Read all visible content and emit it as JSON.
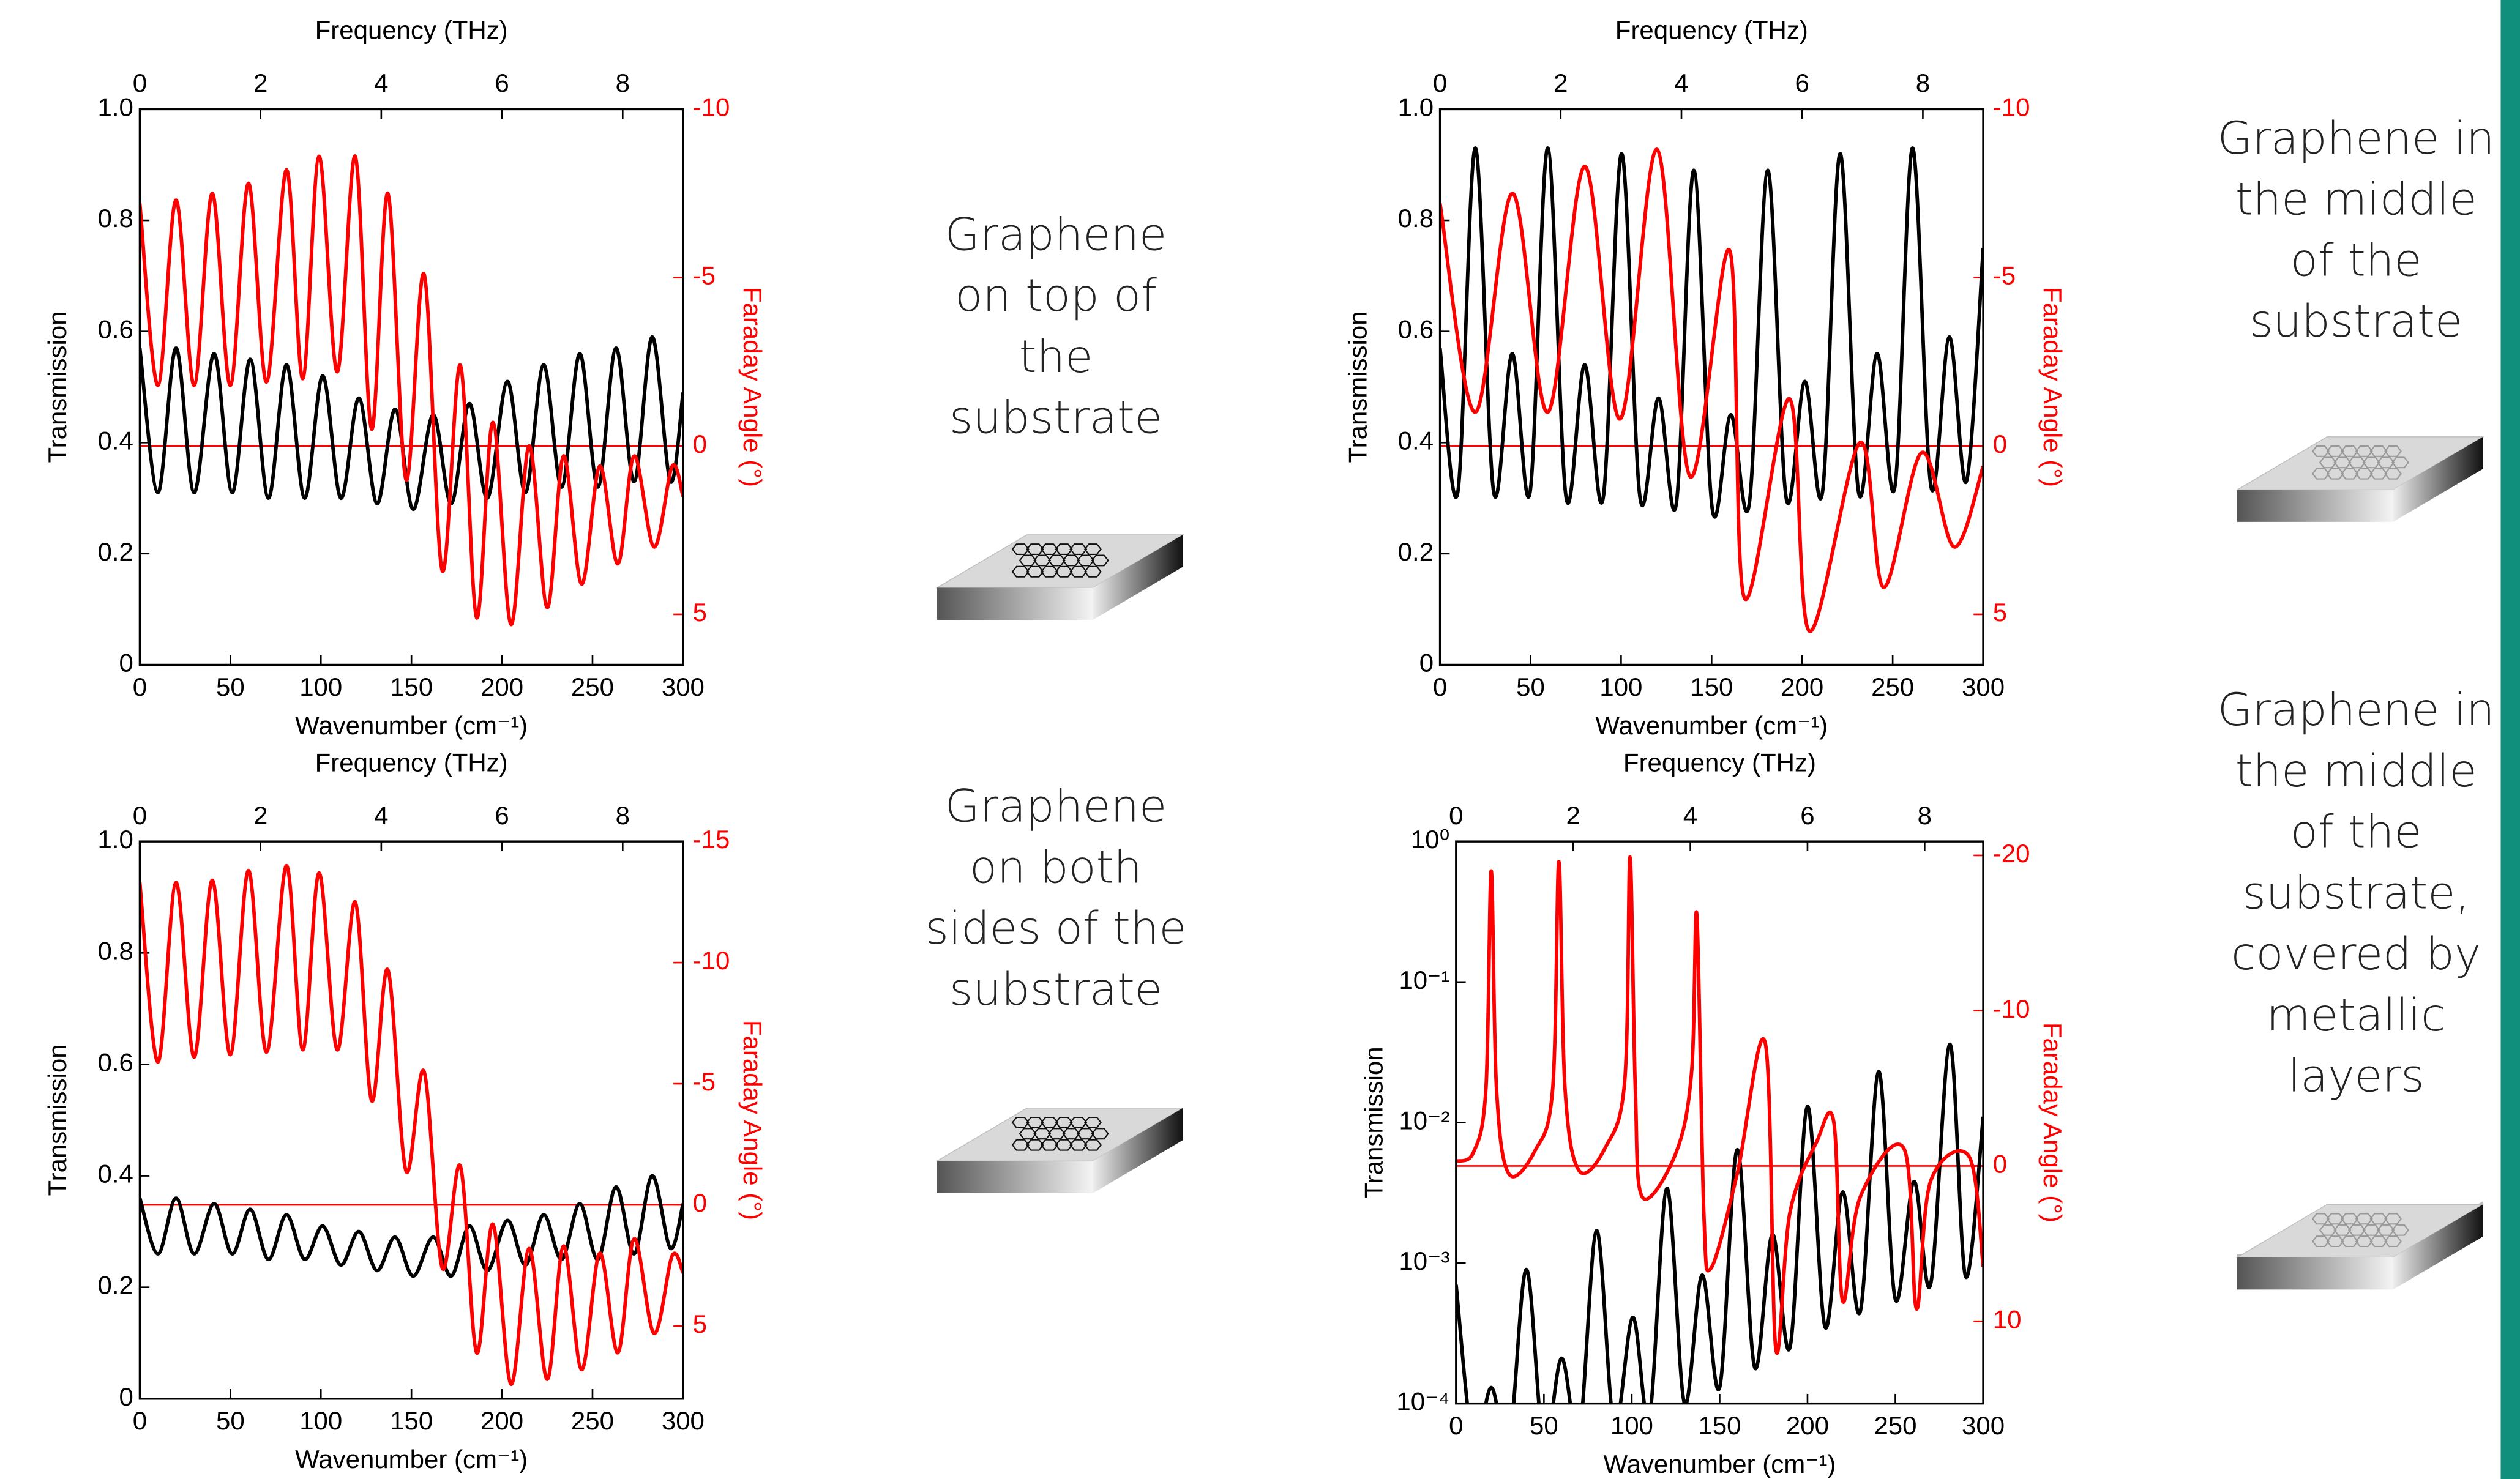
{
  "chart_data": [
    {
      "type": "line",
      "x2label": "Frequency (THz)",
      "xlabel": "Wavenumber (cm⁻¹)",
      "ylabel": "Transmission",
      "y2label": "Faraday Angle (°)",
      "annotation": [
        "Graphene",
        "on top of",
        "the",
        "substrate"
      ],
      "xlim": [
        0,
        300
      ],
      "xticks": [
        0,
        50,
        100,
        150,
        200,
        250,
        300
      ],
      "x2lim": [
        0,
        9
      ],
      "x2ticks": [
        0,
        2,
        4,
        6,
        8
      ],
      "ylim": [
        0,
        1
      ],
      "yticks": [
        0,
        0.2,
        0.4,
        0.6,
        0.8,
        {
          "value": 1,
          "label": "1.0"
        }
      ],
      "y2lim": [
        6.5,
        -10
      ],
      "y2ticks": [
        -10,
        -5,
        0,
        5
      ],
      "series": [
        {
          "color": "#000000",
          "x": [
            0,
            10,
            20,
            30,
            41,
            51,
            61,
            71,
            81,
            91,
            101,
            111,
            121,
            131,
            141,
            151,
            162,
            172,
            182,
            192,
            203,
            213,
            223,
            233,
            243,
            253,
            263,
            273,
            283,
            293,
            300
          ],
          "values": [
            0.57,
            0.31,
            0.57,
            0.31,
            0.56,
            0.31,
            0.55,
            0.3,
            0.54,
            0.3,
            0.52,
            0.3,
            0.48,
            0.29,
            0.46,
            0.28,
            0.45,
            0.29,
            0.47,
            0.3,
            0.51,
            0.31,
            0.54,
            0.32,
            0.56,
            0.32,
            0.57,
            0.33,
            0.59,
            0.33,
            0.49
          ]
        },
        {
          "color": "#ff0000",
          "axis": "y2",
          "x": [
            0,
            10,
            20,
            30,
            40,
            50,
            60,
            70,
            81,
            90,
            99,
            109,
            119,
            128,
            137,
            147,
            157,
            167,
            177,
            186,
            195,
            205,
            215,
            225,
            234,
            244,
            254,
            264,
            273,
            284,
            294,
            300
          ],
          "values": [
            -7.2,
            -1.8,
            -7.3,
            -1.8,
            -7.5,
            -1.8,
            -7.8,
            -1.9,
            -8.2,
            -2.0,
            -8.6,
            -2.2,
            -8.6,
            -0.5,
            -7.5,
            1.0,
            -5.1,
            3.7,
            -2.4,
            5.1,
            -0.7,
            5.3,
            0,
            4.8,
            0.3,
            4.1,
            0.6,
            3.5,
            0.3,
            3.0,
            0.6,
            1.5
          ]
        }
      ]
    },
    {
      "type": "line",
      "x2label": "Frequency (THz)",
      "xlabel": "Wavenumber (cm⁻¹)",
      "ylabel": "Transmission",
      "y2label": "Faraday Angle (°)",
      "annotation": [
        "Graphene in",
        "the middle",
        "of the",
        "substrate"
      ],
      "xlim": [
        0,
        300
      ],
      "xticks": [
        0,
        50,
        100,
        150,
        200,
        250,
        300
      ],
      "x2lim": [
        0,
        9
      ],
      "x2ticks": [
        0,
        2,
        4,
        6,
        8
      ],
      "ylim": [
        0,
        1
      ],
      "yticks": [
        0,
        0.2,
        0.4,
        0.6,
        0.8,
        {
          "value": 1,
          "label": "1.0"
        }
      ],
      "y2lim": [
        6.5,
        -10
      ],
      "y2ticks": [
        -10,
        -5,
        0,
        5
      ],
      "series": [
        {
          "color": "#000000",
          "x": [
            0,
            9.8,
            19.5,
            29.7,
            39.9,
            49.7,
            59.5,
            69.7,
            79.9,
            90.1,
            100.3,
            110.5,
            120.7,
            130.5,
            140.2,
            150.4,
            160.6,
            170.8,
            181,
            191.2,
            201.5,
            211.2,
            221,
            231.2,
            241.4,
            251.2,
            261,
            271.2,
            281.3,
            290.7,
            300
          ],
          "values": [
            0.57,
            0.31,
            0.93,
            0.31,
            0.56,
            0.31,
            0.93,
            0.3,
            0.54,
            0.3,
            0.92,
            0.3,
            0.48,
            0.29,
            0.89,
            0.28,
            0.45,
            0.29,
            0.89,
            0.3,
            0.51,
            0.31,
            0.92,
            0.31,
            0.56,
            0.32,
            0.93,
            0.32,
            0.59,
            0.33,
            0.75
          ]
        },
        {
          "color": "#ff0000",
          "axis": "y2",
          "x": [
            0,
            19.5,
            40,
            59.5,
            80,
            99.4,
            120,
            138,
            160,
            168,
            193,
            204,
            232,
            245,
            266,
            284,
            300
          ],
          "values": [
            -7.2,
            -1.0,
            -7.5,
            -1.0,
            -8.3,
            -0.8,
            -8.8,
            0.9,
            -5.8,
            4.5,
            -1.4,
            5.5,
            -0.1,
            4.2,
            0.2,
            3.0,
            0.6
          ]
        }
      ]
    },
    {
      "type": "line",
      "x2label": "Frequency (THz)",
      "xlabel": "Wavenumber (cm⁻¹)",
      "ylabel": "Transmission",
      "y2label": "Faraday Angle (°)",
      "annotation": [
        "Graphene",
        "on both",
        "sides of the",
        "substrate"
      ],
      "xlim": [
        0,
        300
      ],
      "xticks": [
        0,
        50,
        100,
        150,
        200,
        250,
        300
      ],
      "x2lim": [
        0,
        9
      ],
      "x2ticks": [
        0,
        2,
        4,
        6,
        8
      ],
      "ylim": [
        0,
        1
      ],
      "yticks": [
        0,
        0.2,
        0.4,
        0.6,
        0.8,
        {
          "value": 1,
          "label": "1.0"
        }
      ],
      "y2lim": [
        8,
        -15
      ],
      "y2ticks": [
        -15,
        -10,
        -5,
        0,
        5
      ],
      "series": [
        {
          "color": "#000000",
          "x": [
            0,
            10,
            20,
            30,
            41,
            51,
            61,
            71,
            81,
            91,
            101,
            111,
            121,
            131,
            141,
            151,
            162,
            172,
            182,
            192,
            203,
            213,
            223,
            233,
            243,
            253,
            263,
            273,
            283,
            293,
            300
          ],
          "values": [
            0.36,
            0.26,
            0.36,
            0.26,
            0.35,
            0.26,
            0.34,
            0.25,
            0.33,
            0.25,
            0.31,
            0.24,
            0.3,
            0.23,
            0.29,
            0.22,
            0.29,
            0.22,
            0.31,
            0.23,
            0.32,
            0.24,
            0.33,
            0.25,
            0.35,
            0.25,
            0.38,
            0.26,
            0.4,
            0.27,
            0.35
          ]
        },
        {
          "color": "#ff0000",
          "axis": "y2",
          "x": [
            0,
            10,
            20,
            30,
            40,
            50,
            60,
            70,
            81,
            90,
            99,
            109,
            119,
            128,
            137,
            147,
            157,
            167,
            177,
            186,
            195,
            205,
            215,
            225,
            234,
            244,
            254,
            264,
            273,
            284,
            294,
            300
          ],
          "values": [
            -13.3,
            -5.9,
            -13.3,
            -6.1,
            -13.4,
            -6.2,
            -13.8,
            -6.3,
            -14,
            -6.4,
            -13.7,
            -6.4,
            -12.5,
            -4.3,
            -9.7,
            -1.4,
            -5.5,
            2.6,
            -1.6,
            6.1,
            0.8,
            7.4,
            1.8,
            7.2,
            1.7,
            6.8,
            2.0,
            6.1,
            1.4,
            5.3,
            2.1,
            2.8
          ]
        }
      ]
    },
    {
      "type": "line",
      "x2label": "Frequency (THz)",
      "xlabel": "Wavenumber (cm⁻¹)",
      "ylabel": "Transmission",
      "y2label": "Faraday Angle (°)",
      "annotation": [
        "Graphene in",
        "the middle",
        "of the",
        "substrate,",
        "covered by",
        "metallic",
        "layers"
      ],
      "xlim": [
        0,
        300
      ],
      "xticks": [
        0,
        50,
        100,
        150,
        200,
        250,
        300
      ],
      "x2lim": [
        0,
        9
      ],
      "x2ticks": [
        0,
        2,
        4,
        6,
        8
      ],
      "yscale": "log",
      "ylim": [
        0.0001,
        1
      ],
      "yticks": [
        {
          "value": 0.0001,
          "label": "10⁻⁴"
        },
        {
          "value": 0.001,
          "label": "10⁻³"
        },
        {
          "value": 0.01,
          "label": "10⁻²"
        },
        {
          "value": 0.1,
          "label": "10⁻¹"
        },
        {
          "value": 1,
          "label": "10⁰"
        }
      ],
      "y2lim": [
        15.3,
        -20.9
      ],
      "y2ticks": [
        -20,
        -10,
        0,
        10
      ],
      "series": [
        {
          "color": "#000000",
          "x": [
            0,
            10,
            20,
            30,
            40,
            50,
            60,
            70,
            80,
            90,
            100.6,
            110,
            120,
            130,
            140,
            150,
            160,
            170,
            180,
            190,
            200,
            210,
            220,
            230,
            240.5,
            250,
            260.6,
            270,
            281,
            290,
            300
          ],
          "values": [
            0.0007,
            5e-05,
            0.00013,
            5e-05,
            0.0009,
            5e-05,
            0.00021,
            6e-05,
            0.0017,
            7e-05,
            0.00041,
            8e-05,
            0.0034,
            0.0001,
            0.00082,
            0.00013,
            0.0064,
            0.00018,
            0.0016,
            0.00025,
            0.013,
            0.00035,
            0.0032,
            0.00045,
            0.023,
            0.00055,
            0.0038,
            0.0007,
            0.036,
            0.0008,
            0.011
          ]
        },
        {
          "color": "#ff0000",
          "axis": "y2",
          "x": [
            0,
            10,
            17,
            20,
            23,
            30,
            45,
            55,
            58.5,
            62,
            70,
            85,
            96,
            99,
            102,
            106,
            125,
            134,
            137,
            141,
            145,
            160,
            176,
            182,
            190,
            205,
            215,
            220,
            230,
            255,
            262,
            270,
            292,
            300
          ],
          "values": [
            -0.3,
            -0.9,
            -5,
            -19,
            -5,
            0.5,
            -1.0,
            -5,
            -19.6,
            -5,
            0.3,
            -1.2,
            -5.5,
            -19.9,
            -5,
            2.0,
            -0.8,
            -6,
            -16.2,
            3,
            6.6,
            0.5,
            -7.9,
            11.8,
            3,
            -1.5,
            -2.8,
            8.7,
            2,
            -1.1,
            9.2,
            1,
            -0.6,
            6.5
          ]
        }
      ]
    }
  ]
}
